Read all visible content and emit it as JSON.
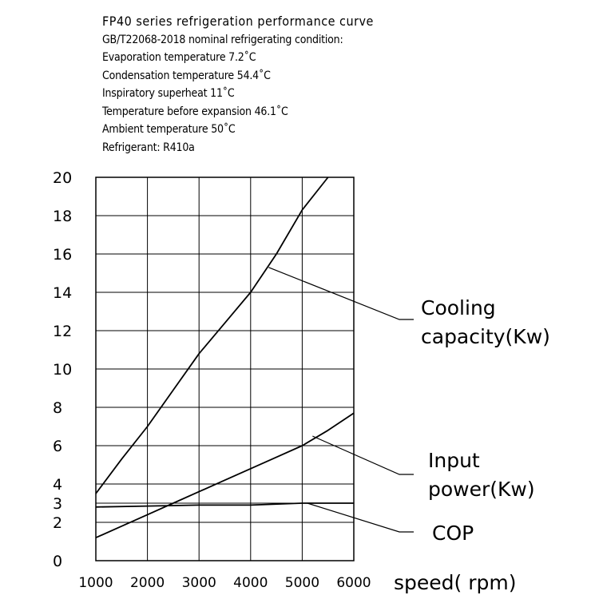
{
  "notes": {
    "title": "FP40  series  refrigeration  performance  curve",
    "lines": [
      "GB/T22068-2018  nominal  refrigerating  condition:",
      "Evaporation  temperature  7.2˚C",
      "Condensation   temperature  54.4˚C",
      "Inspiratory  superheat  11˚C",
      "Temperature  before  expansion  46.1˚C",
      "Ambient   temperature  50˚C",
      "Refrigerant:  R410a"
    ]
  },
  "chart_data": {
    "type": "line",
    "xlabel": "speed( rpm)",
    "ylabel": "",
    "xlim": [
      1000,
      6000
    ],
    "ylim": [
      0,
      20
    ],
    "x_ticks": [
      1000,
      2000,
      3000,
      4000,
      5000,
      6000
    ],
    "x_tick_labels": [
      "1000",
      "2000",
      "3000",
      "4000",
      "5000",
      "6000"
    ],
    "y_ticks": [
      0,
      2,
      3,
      4,
      6,
      8,
      10,
      12,
      14,
      16,
      18,
      20
    ],
    "y_tick_labels": [
      "0",
      "2",
      "3",
      "4",
      "6",
      "8",
      "10",
      "12",
      "14",
      "16",
      "18",
      "20"
    ],
    "grid": true,
    "series": [
      {
        "name": "Cooling capacity(Kw)",
        "label_lines": [
          "Cooling",
          "capacity(Kw)"
        ],
        "x": [
          1000,
          1500,
          2000,
          2500,
          3000,
          3500,
          4000,
          4500,
          5000,
          5500
        ],
        "y": [
          3.5,
          5.3,
          7.0,
          8.9,
          10.8,
          12.4,
          14.0,
          16.0,
          18.3,
          20.0
        ],
        "annotation_point": [
          4350,
          15.3
        ]
      },
      {
        "name": "Input power(Kw)",
        "label_lines": [
          "Input",
          "power(Kw)"
        ],
        "x": [
          1000,
          1500,
          2000,
          2500,
          3000,
          3500,
          4000,
          4500,
          5000,
          5500,
          6000
        ],
        "y": [
          1.2,
          1.8,
          2.4,
          3.0,
          3.6,
          4.2,
          4.8,
          5.4,
          6.0,
          6.8,
          7.7
        ],
        "annotation_point": [
          5200,
          6.5
        ]
      },
      {
        "name": "COP",
        "label_lines": [
          "COP"
        ],
        "x": [
          1000,
          2000,
          3000,
          4000,
          5000,
          6000
        ],
        "y": [
          2.8,
          2.85,
          2.9,
          2.9,
          3.0,
          3.0
        ],
        "annotation_point": [
          5100,
          3.0
        ]
      }
    ]
  }
}
